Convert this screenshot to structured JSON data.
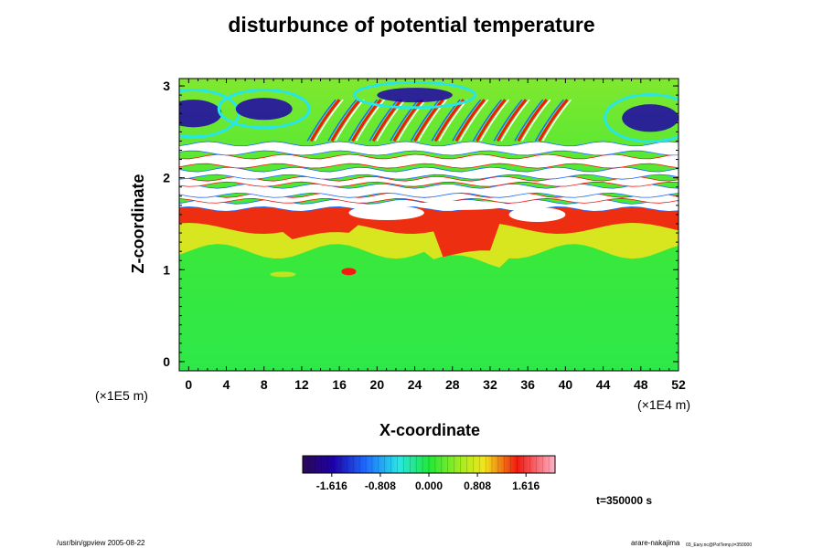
{
  "chart_data": {
    "type": "heatmap",
    "title": "disturbunce of potential temperature",
    "xlabel": "X-coordinate",
    "ylabel": "Z-coordinate",
    "x_unit": "(×1E4 m)",
    "y_unit": "(×1E5 m)",
    "xlim": [
      -1,
      52
    ],
    "ylim": [
      -0.1,
      3.08
    ],
    "x_ticks": [
      "0",
      "4",
      "8",
      "12",
      "16",
      "20",
      "24",
      "28",
      "32",
      "36",
      "40",
      "44",
      "48",
      "52"
    ],
    "y_ticks": [
      "0",
      "1",
      "2",
      "3"
    ],
    "colorbar": {
      "range": [
        -2.1,
        2.1
      ],
      "tick_labels": [
        "-1.616",
        "-0.808",
        "0.000",
        "0.808",
        "1.616"
      ],
      "tick_values": [
        -1.616,
        -0.808,
        0.0,
        0.808,
        1.616
      ]
    },
    "regions": [
      {
        "z": [
          0.0,
          1.15
        ],
        "value": 0.0,
        "note": "near-zero background (green)"
      },
      {
        "z": [
          1.15,
          1.68
        ],
        "value": 1.0,
        "note": "positive band (yellow to red)"
      },
      {
        "z": [
          1.68,
          2.05
        ],
        "value": 2.3,
        "note": "saturated strongly perturbed layers (white)"
      },
      {
        "z": [
          2.05,
          2.85
        ],
        "value": 0.8,
        "note": "wave patterns of alternating sign"
      },
      {
        "z": [
          2.5,
          3.0
        ],
        "value": -1.6,
        "note": "negative patches near top (blue)"
      }
    ]
  },
  "time_label": "t=350000 s",
  "footer": {
    "left": "/usr/bin/gpview 2005-08-22",
    "right": "arare-nakajima",
    "right_sub": "03_Eary.nc@PotTemp,t=350000"
  },
  "colors": {
    "neg_strong": "#1e00a8",
    "neg": "#1f6bff",
    "neutral": "#20e83a",
    "pos": "#f3e51a",
    "pos_strong": "#f01a10",
    "saturated": "#ffffff"
  }
}
